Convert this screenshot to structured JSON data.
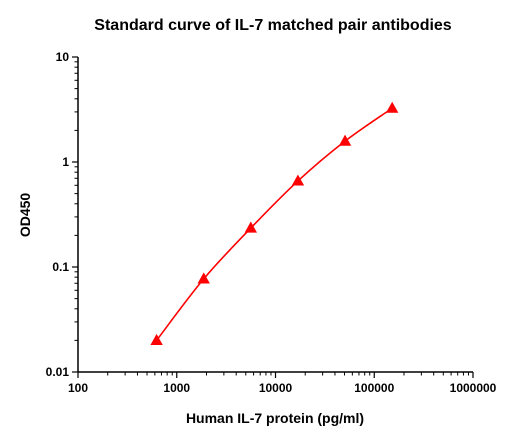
{
  "chart_data": {
    "type": "scatter",
    "title": "Standard curve of IL-7 matched pair antibodies",
    "xlabel": "Human IL-7 protein (pg/ml)",
    "ylabel": "OD450",
    "xscale": "log",
    "yscale": "log",
    "xlim": [
      100,
      1000000
    ],
    "ylim": [
      0.01,
      10
    ],
    "x_ticks": [
      "100",
      "1000",
      "10000",
      "100000",
      "1000000"
    ],
    "y_ticks": [
      "0.01",
      "0.1",
      "1",
      "10"
    ],
    "grid": false,
    "marker": "triangle",
    "colors": {
      "series": "#ff0000",
      "axis": "#000000"
    },
    "series": [
      {
        "x": [
          625,
          1875,
          5625,
          16875,
          50625,
          151875
        ],
        "y": [
          0.02,
          0.077,
          0.235,
          0.66,
          1.58,
          3.25
        ]
      }
    ]
  }
}
